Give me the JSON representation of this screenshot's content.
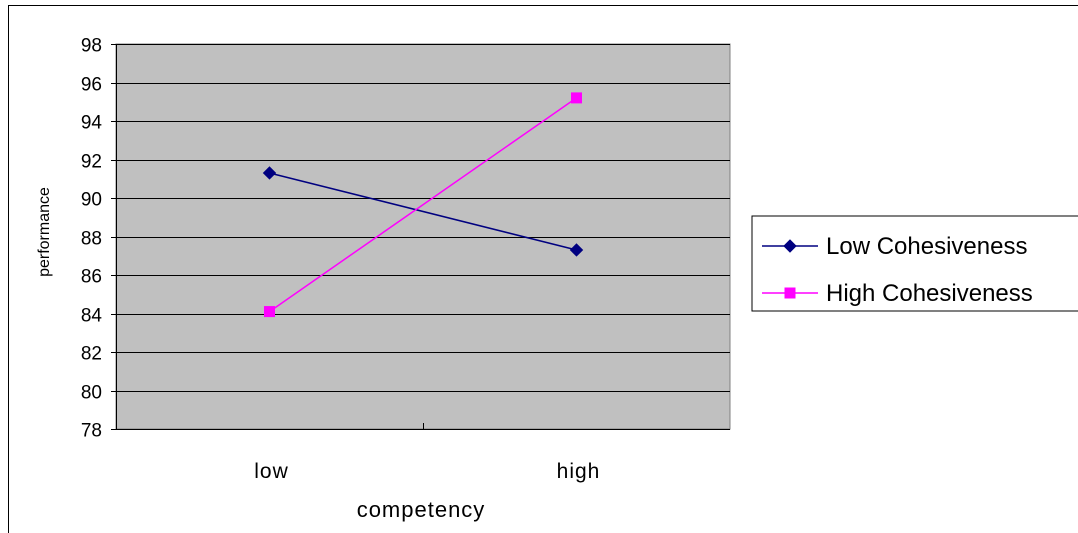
{
  "chart_data": {
    "type": "line",
    "title": "",
    "xlabel": "competency",
    "ylabel": "performance",
    "categories": [
      "low",
      "high"
    ],
    "ylim": [
      78,
      98
    ],
    "yticks": [
      78,
      80,
      82,
      84,
      86,
      88,
      90,
      92,
      94,
      96,
      98
    ],
    "grid": true,
    "legend_position": "right",
    "plot_background": "#c0c0c0",
    "series": [
      {
        "name": "Low Cohesiveness",
        "values": [
          91.3,
          87.3
        ],
        "color": "#000080",
        "marker": "diamond"
      },
      {
        "name": "High Cohesiveness",
        "values": [
          84.1,
          95.2
        ],
        "color": "#ff00ff",
        "marker": "square"
      }
    ]
  }
}
